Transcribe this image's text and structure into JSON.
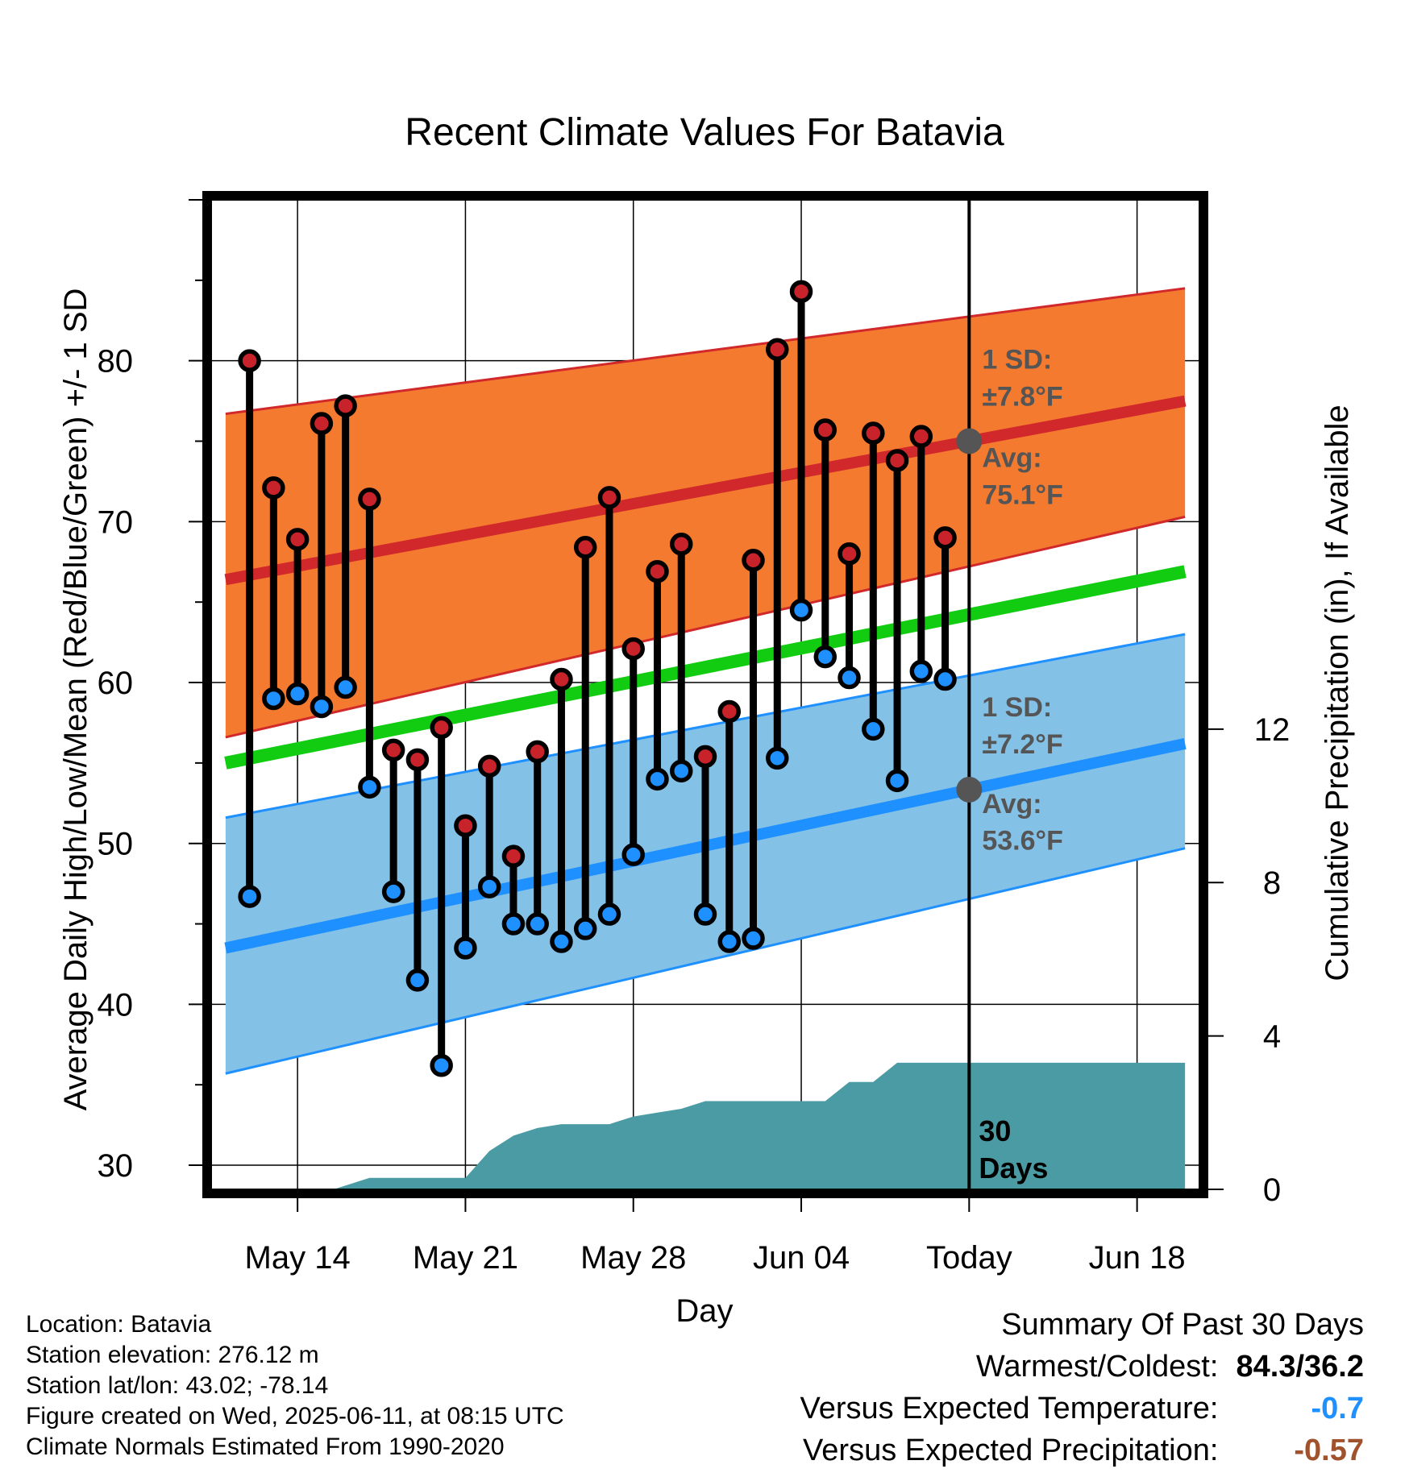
{
  "chart_data": {
    "type": "line",
    "title": "Recent Climate Values For Batavia",
    "xlabel": "Day",
    "ylabel": "Average Daily High/Low/Mean (Red/Blue/Green) +/- 1 SD",
    "y2label": "Cumulative Precipitation (in), If Available",
    "ylim": [
      28.5,
      90
    ],
    "y2lim": [
      0,
      25.8
    ],
    "yticks": [
      30,
      40,
      50,
      60,
      70,
      80
    ],
    "y2ticks": [
      0,
      4,
      8,
      12
    ],
    "xlim": [
      -3.6,
      37.6
    ],
    "xtick_labels": [
      {
        "day": 0,
        "label": "May 14"
      },
      {
        "day": 7,
        "label": "May 21"
      },
      {
        "day": 14,
        "label": "May 28"
      },
      {
        "day": 21,
        "label": "Jun 04"
      },
      {
        "day": 28,
        "label": "Today"
      },
      {
        "day": 35,
        "label": "Jun 18"
      }
    ],
    "today_day": 28,
    "observed": {
      "start_day": -2,
      "high": [
        80.0,
        72.1,
        68.9,
        76.1,
        77.2,
        71.4,
        55.8,
        55.2,
        57.2,
        51.1,
        54.8,
        49.2,
        55.7,
        60.2,
        68.4,
        71.5,
        62.1,
        66.9,
        68.6,
        55.4,
        58.2,
        67.6,
        80.7,
        84.3,
        75.7,
        68.0,
        75.5,
        73.8,
        75.3,
        69.0
      ],
      "low": [
        46.7,
        59.0,
        59.3,
        58.5,
        59.7,
        53.5,
        47.0,
        41.5,
        36.2,
        43.5,
        47.3,
        45.0,
        45.0,
        43.9,
        44.7,
        45.6,
        49.3,
        54.0,
        54.5,
        45.6,
        43.9,
        44.1,
        55.3,
        64.5,
        61.6,
        60.3,
        57.1,
        53.9,
        60.7,
        60.2
      ]
    },
    "normals": {
      "x": [
        -3,
        37
      ],
      "high_avg": [
        66.4,
        77.5
      ],
      "high_sd_upper": [
        76.7,
        84.5
      ],
      "high_sd_lower": [
        56.6,
        70.3
      ],
      "mean": [
        55.0,
        66.9
      ],
      "low_avg": [
        43.5,
        56.2
      ],
      "low_sd_upper": [
        51.6,
        63.0
      ],
      "low_sd_lower": [
        35.7,
        49.7
      ]
    },
    "precipitation": {
      "x": [
        -3,
        1.5,
        3,
        5,
        7,
        8,
        9,
        10,
        11,
        12,
        13,
        14,
        15,
        16,
        17,
        18,
        19,
        20,
        21,
        22,
        23,
        24,
        25,
        26,
        27,
        28,
        29,
        30,
        31,
        32,
        33,
        34,
        35,
        36,
        37
      ],
      "y": [
        0,
        0,
        0.3,
        0.3,
        0.3,
        1.0,
        1.4,
        1.6,
        1.7,
        1.7,
        1.7,
        1.9,
        2.0,
        2.1,
        2.3,
        2.3,
        2.3,
        2.3,
        2.3,
        2.3,
        2.8,
        2.8,
        3.3,
        3.3,
        3.3,
        3.3,
        3.3,
        3.3,
        3.3,
        3.3,
        3.3,
        3.3,
        3.3,
        3.3,
        3.3
      ]
    },
    "annotations": {
      "high_sd": "1 SD:",
      "high_sd_value": "±7.8°F",
      "high_avg": "Avg:",
      "high_avg_value": "75.1°F",
      "low_sd": "1 SD:",
      "low_sd_value": "±7.2°F",
      "low_avg": "Avg:",
      "low_avg_value": "53.6°F",
      "days_1": "30",
      "days_2": "Days"
    },
    "colors": {
      "high_band": "#F47A2F",
      "high_line": "#D0282B",
      "mean_line": "#11CC11",
      "low_band": "#84C1E7",
      "low_line": "#1E90FF",
      "precip": "#4A9BA3",
      "annotation": "#555555",
      "high_marker": "#C8232B",
      "low_marker": "#1E90FF"
    },
    "grid": true
  },
  "meta": {
    "location": "Location: Batavia",
    "elevation": "Station elevation: 276.12 m",
    "latlon": "Station lat/lon: 43.02; -78.14",
    "created": "Figure created on Wed, 2025-06-11, at 08:15 UTC",
    "normals": "Climate Normals Estimated From 1990-2020"
  },
  "summary": {
    "title": "Summary Of Past 30 Days",
    "warmest_label": "Warmest/Coldest:",
    "warmest_value": "84.3/36.2",
    "temp_label": "Versus Expected Temperature:",
    "temp_value": "-0.7",
    "temp_color": "#1E90FF",
    "precip_label": "Versus Expected Precipitation:",
    "precip_value": "-0.57",
    "precip_color": "#A0522D"
  }
}
